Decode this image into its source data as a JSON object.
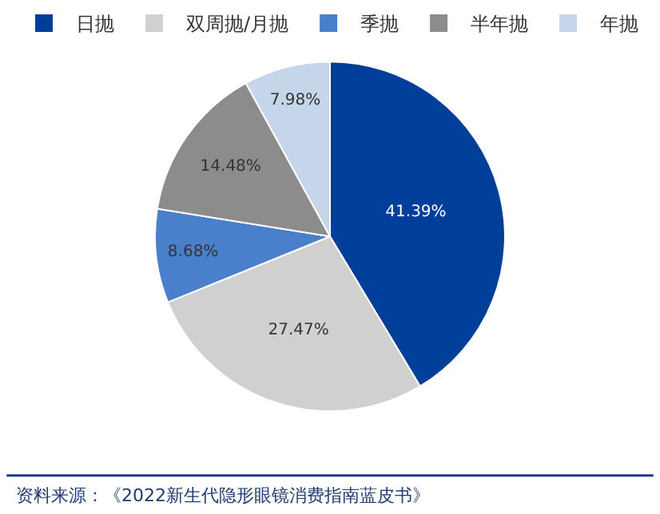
{
  "chart_data": {
    "type": "pie",
    "categories": [
      "日抛",
      "双周抛/月抛",
      "季抛",
      "半年抛",
      "年抛"
    ],
    "values": [
      41.39,
      27.47,
      8.68,
      14.48,
      7.98
    ],
    "colors": [
      "#003f99",
      "#d0d0d0",
      "#4a7fcb",
      "#8c8c8c",
      "#c5d5ea"
    ],
    "value_labels": [
      "41.39%",
      "27.47%",
      "8.68%",
      "14.48%",
      "7.98%"
    ],
    "legend": "top",
    "annotations": [
      "资料来源：《2022新生代隐形眼镜消费指南蓝皮书》"
    ]
  }
}
